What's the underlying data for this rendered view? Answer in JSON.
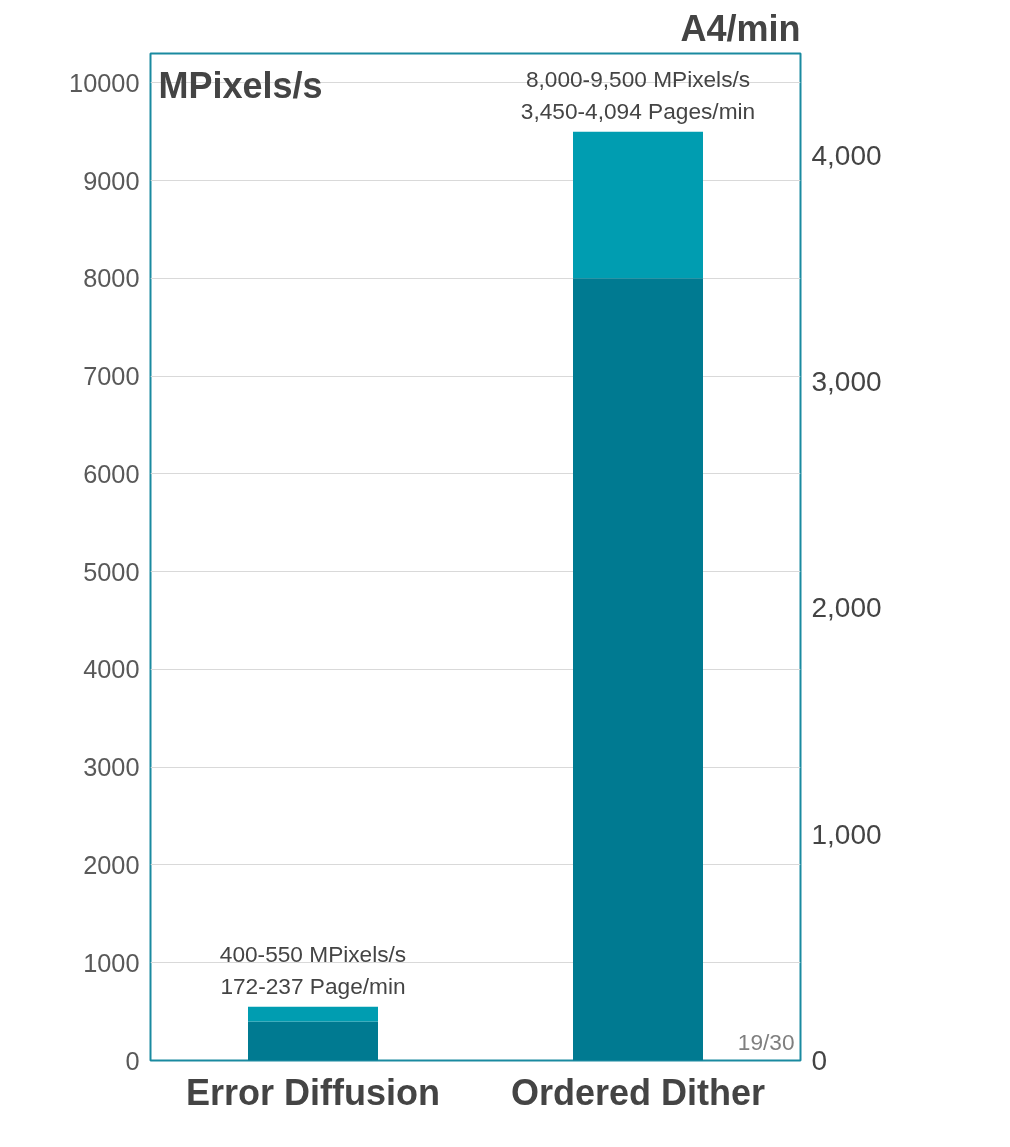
{
  "chart_data": {
    "type": "bar",
    "stacked": true,
    "categories": [
      "Error Diffusion",
      "Ordered Dither"
    ],
    "series": [
      {
        "color": "#007a91",
        "values": [
          400,
          8000
        ]
      },
      {
        "color": "#009db1",
        "values": [
          150,
          1500
        ]
      }
    ],
    "ylabel": "MPixels/s",
    "y2label": "A4/min",
    "ylim": [
      0,
      10300
    ],
    "yticks": [
      0,
      1000,
      2000,
      3000,
      4000,
      5000,
      6000,
      7000,
      8000,
      9000,
      10000
    ],
    "y2lim": [
      0,
      4450
    ],
    "y2ticks": [
      0,
      {
        "value": 1000,
        "label": "1,000"
      },
      {
        "value": 2000,
        "label": "2,000"
      },
      {
        "value": 3000,
        "label": "3,000"
      },
      {
        "value": 4000,
        "label": "4,000"
      }
    ],
    "grid": "y",
    "annotations": [
      {
        "text": "400-550 MPixels/s",
        "x": "Error Diffusion",
        "y": 550
      },
      {
        "text": "172-237 Page/min",
        "x": "Error Diffusion",
        "y": 550
      },
      {
        "text": "8,000-9,500 MPixels/s",
        "x": "Ordered Dither",
        "y": 9500
      },
      {
        "text": "3,450-4,094 Pages/min",
        "x": "Ordered Dither",
        "y": 9500
      },
      "19/30"
    ]
  }
}
